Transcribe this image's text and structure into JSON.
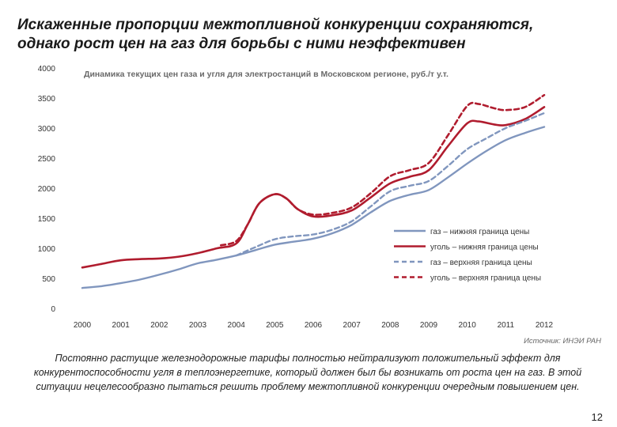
{
  "page": {
    "title": "Искаженные пропорции межтопливной конкуренции сохраняются,\nоднако рост цен на газ для борьбы с ними неэффективен",
    "source": "Источник: ИНЭИ РАН",
    "footnote": "Постоянно растущие железнодорожные тарифы полностью нейтрализуют положительный эффект для конкурентоспособности угля в теплоэнергетике, который должен был бы возникать от роста цен на газ. В этой ситуации нецелесообразно пытаться решить проблему межтопливной конкуренции очередным повышением цен.",
    "page_number": "12"
  },
  "chart_data": {
    "type": "line",
    "title": "Динамика текущих цен газа и угля для электростанций в Московском регионе, руб./т у.т.",
    "xlabel": "",
    "ylabel": "",
    "ylim": [
      0,
      4000
    ],
    "yticks": [
      0,
      500,
      1000,
      1500,
      2000,
      2500,
      3000,
      3500,
      4000
    ],
    "categories": [
      "2000",
      "2001",
      "2002",
      "2003",
      "2004",
      "2005",
      "2006",
      "2007",
      "2008",
      "2009",
      "2010",
      "2011",
      "2012"
    ],
    "x_range": [
      2000,
      2012
    ],
    "legend_position": "bottom-right",
    "series": [
      {
        "name": "газ – нижняя граница цены",
        "color": "#8096be",
        "dash": "solid",
        "x": [
          2000.0,
          2000.5,
          2001.0,
          2001.5,
          2002.0,
          2002.5,
          2003.0,
          2003.5,
          2004.0,
          2004.5,
          2005.0,
          2005.5,
          2006.0,
          2006.5,
          2007.0,
          2007.5,
          2008.0,
          2008.5,
          2009.0,
          2009.5,
          2010.0,
          2010.5,
          2011.0,
          2011.5,
          2012.0
        ],
        "y": [
          340,
          370,
          420,
          480,
          560,
          650,
          750,
          810,
          880,
          970,
          1060,
          1110,
          1160,
          1250,
          1390,
          1600,
          1790,
          1890,
          1970,
          2180,
          2410,
          2620,
          2800,
          2920,
          3020
        ]
      },
      {
        "name": "уголь – нижняя граница цены",
        "color": "#b01c2e",
        "dash": "solid",
        "x": [
          2000.0,
          2000.5,
          2001.0,
          2001.5,
          2002.0,
          2002.5,
          2003.0,
          2003.5,
          2004.0,
          2004.3,
          2004.6,
          2005.0,
          2005.3,
          2005.6,
          2006.0,
          2006.5,
          2007.0,
          2007.5,
          2008.0,
          2008.5,
          2009.0,
          2009.5,
          2010.0,
          2010.3,
          2010.7,
          2011.0,
          2011.5,
          2012.0
        ],
        "y": [
          680,
          740,
          800,
          820,
          830,
          860,
          920,
          1000,
          1080,
          1400,
          1750,
          1900,
          1830,
          1650,
          1530,
          1550,
          1630,
          1850,
          2080,
          2190,
          2300,
          2700,
          3080,
          3110,
          3060,
          3050,
          3150,
          3350
        ]
      },
      {
        "name": "газ – верхняя граница цены",
        "color": "#8096be",
        "dash": "dashed",
        "x": [
          2004.0,
          2004.5,
          2005.0,
          2005.5,
          2006.0,
          2006.5,
          2007.0,
          2007.5,
          2008.0,
          2008.5,
          2009.0,
          2009.5,
          2010.0,
          2010.5,
          2011.0,
          2011.5,
          2012.0
        ],
        "y": [
          880,
          1020,
          1150,
          1200,
          1230,
          1310,
          1450,
          1700,
          1950,
          2040,
          2120,
          2370,
          2650,
          2830,
          3000,
          3120,
          3250
        ]
      },
      {
        "name": "уголь – верхняя граница цены",
        "color": "#b01c2e",
        "dash": "dashed",
        "x": [
          2003.6,
          2004.0,
          2004.3,
          2004.6,
          2005.0,
          2005.3,
          2005.6,
          2006.0,
          2006.5,
          2007.0,
          2007.5,
          2008.0,
          2008.5,
          2009.0,
          2009.5,
          2010.0,
          2010.3,
          2010.7,
          2011.0,
          2011.5,
          2012.0
        ],
        "y": [
          1050,
          1120,
          1400,
          1750,
          1900,
          1830,
          1650,
          1560,
          1590,
          1680,
          1920,
          2200,
          2300,
          2420,
          2880,
          3370,
          3400,
          3330,
          3300,
          3350,
          3550
        ]
      }
    ]
  }
}
